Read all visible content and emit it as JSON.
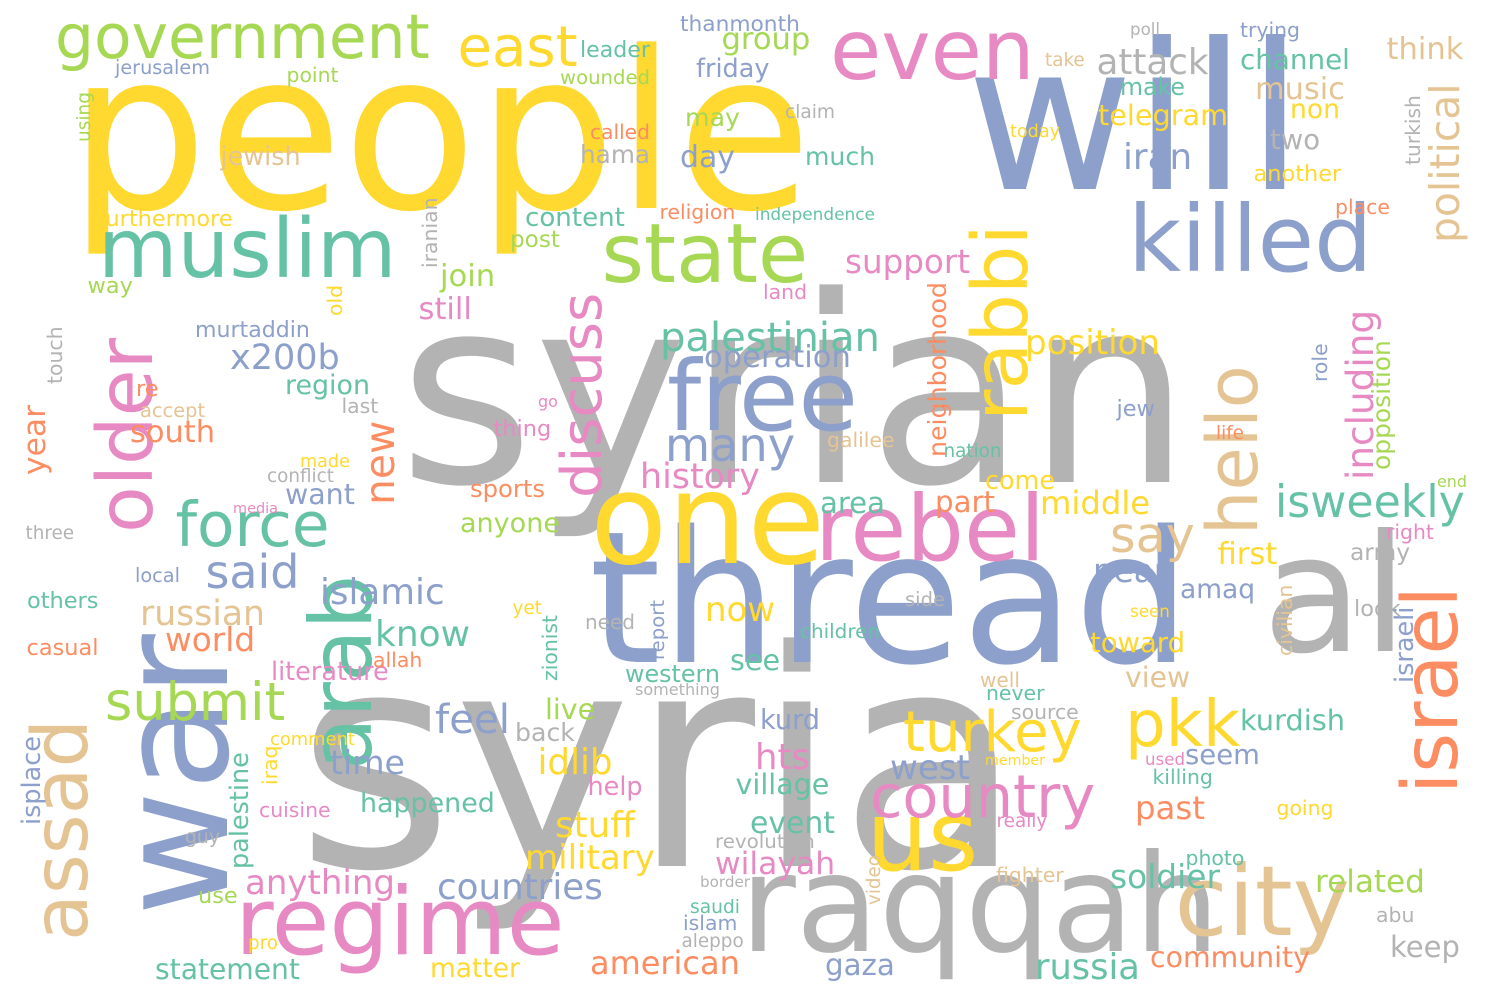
{
  "palette": {
    "gray": "#b3b3b3",
    "blue": "#8da0cb",
    "yellow": "#ffd92f",
    "green": "#a6d854",
    "pink": "#e78ac3",
    "teal": "#66c2a5",
    "orange": "#fc8d62",
    "tan": "#e5c494"
  },
  "words": [
    {
      "text": "syrian",
      "color": "gray"
    },
    {
      "text": "syria",
      "color": "gray"
    },
    {
      "text": "people",
      "color": "yellow"
    },
    {
      "text": "will",
      "color": "blue"
    },
    {
      "text": "thread",
      "color": "blue"
    },
    {
      "text": "al",
      "color": "gray"
    },
    {
      "text": "war",
      "color": "blue"
    },
    {
      "text": "raqqah",
      "color": "gray"
    },
    {
      "text": "one",
      "color": "yellow"
    },
    {
      "text": "free",
      "color": "blue"
    },
    {
      "text": "state",
      "color": "green"
    },
    {
      "text": "muslim",
      "color": "teal"
    },
    {
      "text": "killed",
      "color": "blue"
    },
    {
      "text": "regime",
      "color": "pink"
    },
    {
      "text": "rebel",
      "color": "pink"
    },
    {
      "text": "arab",
      "color": "teal"
    },
    {
      "text": "city",
      "color": "tan"
    },
    {
      "text": "even",
      "color": "pink"
    },
    {
      "text": "government",
      "color": "green"
    },
    {
      "text": "older",
      "color": "pink"
    },
    {
      "text": "assad",
      "color": "tan"
    },
    {
      "text": "israel",
      "color": "orange"
    },
    {
      "text": "hello",
      "color": "tan"
    },
    {
      "text": "us",
      "color": "yellow"
    },
    {
      "text": "rabbi",
      "color": "yellow"
    },
    {
      "text": "force",
      "color": "teal"
    },
    {
      "text": "pkk",
      "color": "yellow"
    },
    {
      "text": "country",
      "color": "pink"
    },
    {
      "text": "east",
      "color": "yellow"
    },
    {
      "text": "turkey",
      "color": "yellow"
    },
    {
      "text": "discuss",
      "color": "pink"
    },
    {
      "text": "many",
      "color": "blue"
    },
    {
      "text": "said",
      "color": "blue"
    },
    {
      "text": "submit",
      "color": "green"
    },
    {
      "text": "say",
      "color": "tan"
    },
    {
      "text": "isweekly",
      "color": "teal"
    },
    {
      "text": "palestinian",
      "color": "teal"
    },
    {
      "text": "new",
      "color": "orange"
    },
    {
      "text": "political",
      "color": "tan"
    },
    {
      "text": "x200b",
      "color": "blue"
    },
    {
      "text": "attack",
      "color": "gray"
    },
    {
      "text": "know",
      "color": "teal"
    },
    {
      "text": "islamic",
      "color": "blue"
    },
    {
      "text": "now",
      "color": "yellow"
    },
    {
      "text": "feel",
      "color": "blue"
    },
    {
      "text": "support",
      "color": "pink"
    },
    {
      "text": "operation",
      "color": "blue"
    },
    {
      "text": "position",
      "color": "yellow"
    },
    {
      "text": "group",
      "color": "green"
    },
    {
      "text": "channel",
      "color": "teal"
    },
    {
      "text": "music",
      "color": "tan"
    },
    {
      "text": "think",
      "color": "tan"
    },
    {
      "text": "iran",
      "color": "blue"
    },
    {
      "text": "day",
      "color": "blue"
    },
    {
      "text": "much",
      "color": "teal"
    },
    {
      "text": "may",
      "color": "green"
    },
    {
      "text": "hama",
      "color": "gray"
    },
    {
      "text": "non",
      "color": "yellow"
    },
    {
      "text": "two",
      "color": "gray"
    },
    {
      "text": "make",
      "color": "teal"
    },
    {
      "text": "telegram",
      "color": "yellow"
    },
    {
      "text": "including",
      "color": "pink"
    },
    {
      "text": "history",
      "color": "pink"
    },
    {
      "text": "russian",
      "color": "tan"
    },
    {
      "text": "world",
      "color": "orange"
    },
    {
      "text": "countries",
      "color": "blue"
    },
    {
      "text": "anything",
      "color": "pink"
    },
    {
      "text": "happened",
      "color": "teal"
    },
    {
      "text": "military",
      "color": "yellow"
    },
    {
      "text": "stuff",
      "color": "yellow"
    },
    {
      "text": "time",
      "color": "blue"
    },
    {
      "text": "idlib",
      "color": "yellow"
    },
    {
      "text": "hts",
      "color": "pink"
    },
    {
      "text": "west",
      "color": "blue"
    },
    {
      "text": "kurdish",
      "color": "teal"
    },
    {
      "text": "seem",
      "color": "blue"
    },
    {
      "text": "past",
      "color": "orange"
    },
    {
      "text": "event",
      "color": "teal"
    },
    {
      "text": "wilayah",
      "color": "pink"
    },
    {
      "text": "soldier",
      "color": "teal"
    },
    {
      "text": "related",
      "color": "green"
    },
    {
      "text": "community",
      "color": "orange"
    },
    {
      "text": "russia",
      "color": "teal"
    },
    {
      "text": "keep",
      "color": "gray"
    },
    {
      "text": "american",
      "color": "orange"
    },
    {
      "text": "gaza",
      "color": "blue"
    },
    {
      "text": "statement",
      "color": "teal"
    },
    {
      "text": "matter",
      "color": "yellow"
    },
    {
      "text": "come",
      "color": "yellow"
    },
    {
      "text": "middle",
      "color": "yellow"
    },
    {
      "text": "area",
      "color": "teal"
    },
    {
      "text": "part",
      "color": "orange"
    },
    {
      "text": "near",
      "color": "blue"
    },
    {
      "text": "first",
      "color": "yellow"
    },
    {
      "text": "army",
      "color": "gray"
    },
    {
      "text": "amaq",
      "color": "blue"
    },
    {
      "text": "toward",
      "color": "yellow"
    },
    {
      "text": "view",
      "color": "tan"
    },
    {
      "text": "see",
      "color": "teal"
    },
    {
      "text": "western",
      "color": "teal"
    },
    {
      "text": "live",
      "color": "green"
    },
    {
      "text": "back",
      "color": "gray"
    },
    {
      "text": "kurd",
      "color": "blue"
    },
    {
      "text": "village",
      "color": "teal"
    },
    {
      "text": "want",
      "color": "blue"
    },
    {
      "text": "anyone",
      "color": "green"
    },
    {
      "text": "south",
      "color": "orange"
    },
    {
      "text": "region",
      "color": "teal"
    },
    {
      "text": "join",
      "color": "green"
    },
    {
      "text": "still",
      "color": "pink"
    },
    {
      "text": "content",
      "color": "teal"
    },
    {
      "text": "post",
      "color": "green"
    },
    {
      "text": "year",
      "color": "orange"
    },
    {
      "text": "sports",
      "color": "orange"
    },
    {
      "text": "literature",
      "color": "pink"
    },
    {
      "text": "help",
      "color": "pink"
    },
    {
      "text": "leader",
      "color": "teal"
    },
    {
      "text": "thanmonth",
      "color": "blue"
    },
    {
      "text": "wounded",
      "color": "green"
    },
    {
      "text": "friday",
      "color": "blue"
    },
    {
      "text": "jewish",
      "color": "tan"
    },
    {
      "text": "jerusalem",
      "color": "blue"
    },
    {
      "text": "point",
      "color": "green"
    },
    {
      "text": "using",
      "color": "green"
    },
    {
      "text": "furthermore",
      "color": "yellow"
    },
    {
      "text": "religion",
      "color": "orange"
    },
    {
      "text": "independence",
      "color": "teal"
    },
    {
      "text": "called",
      "color": "orange"
    },
    {
      "text": "claim",
      "color": "gray"
    },
    {
      "text": "today",
      "color": "yellow"
    },
    {
      "text": "poll",
      "color": "gray"
    },
    {
      "text": "trying",
      "color": "blue"
    },
    {
      "text": "take",
      "color": "tan"
    },
    {
      "text": "another",
      "color": "yellow"
    },
    {
      "text": "turkish",
      "color": "gray"
    },
    {
      "text": "place",
      "color": "orange"
    },
    {
      "text": "iranian",
      "color": "gray"
    },
    {
      "text": "way",
      "color": "green"
    },
    {
      "text": "land",
      "color": "pink"
    },
    {
      "text": "murtaddin",
      "color": "blue"
    },
    {
      "text": "old",
      "color": "yellow"
    },
    {
      "text": "touch",
      "color": "gray"
    },
    {
      "text": "re",
      "color": "orange"
    },
    {
      "text": "accept",
      "color": "tan"
    },
    {
      "text": "last",
      "color": "gray"
    },
    {
      "text": "go",
      "color": "pink"
    },
    {
      "text": "thing",
      "color": "pink"
    },
    {
      "text": "galilee",
      "color": "tan"
    },
    {
      "text": "nation",
      "color": "teal"
    },
    {
      "text": "neighborhood",
      "color": "orange"
    },
    {
      "text": "jew",
      "color": "blue"
    },
    {
      "text": "role",
      "color": "blue"
    },
    {
      "text": "opposition",
      "color": "green"
    },
    {
      "text": "life",
      "color": "orange"
    },
    {
      "text": "end",
      "color": "green"
    },
    {
      "text": "right",
      "color": "pink"
    },
    {
      "text": "conflict",
      "color": "gray"
    },
    {
      "text": "made",
      "color": "yellow"
    },
    {
      "text": "media",
      "color": "pink"
    },
    {
      "text": "three",
      "color": "gray"
    },
    {
      "text": "local",
      "color": "blue"
    },
    {
      "text": "others",
      "color": "teal"
    },
    {
      "text": "casual",
      "color": "orange"
    },
    {
      "text": "yet",
      "color": "yellow"
    },
    {
      "text": "need",
      "color": "gray"
    },
    {
      "text": "report",
      "color": "blue"
    },
    {
      "text": "zionist",
      "color": "teal"
    },
    {
      "text": "side",
      "color": "gray"
    },
    {
      "text": "children",
      "color": "teal"
    },
    {
      "text": "seen",
      "color": "yellow"
    },
    {
      "text": "look",
      "color": "gray"
    },
    {
      "text": "civilian",
      "color": "tan"
    },
    {
      "text": "israeli",
      "color": "blue"
    },
    {
      "text": "allah",
      "color": "orange"
    },
    {
      "text": "something",
      "color": "gray"
    },
    {
      "text": "well",
      "color": "tan"
    },
    {
      "text": "never",
      "color": "teal"
    },
    {
      "text": "source",
      "color": "gray"
    },
    {
      "text": "isplace",
      "color": "blue"
    },
    {
      "text": "comment",
      "color": "yellow"
    },
    {
      "text": "iraq",
      "color": "yellow"
    },
    {
      "text": "palestine",
      "color": "teal"
    },
    {
      "text": "cuisine",
      "color": "pink"
    },
    {
      "text": "guy",
      "color": "gray"
    },
    {
      "text": "use",
      "color": "green"
    },
    {
      "text": "pro",
      "color": "yellow"
    },
    {
      "text": "member",
      "color": "yellow"
    },
    {
      "text": "used",
      "color": "pink"
    },
    {
      "text": "killing",
      "color": "teal"
    },
    {
      "text": "really",
      "color": "pink"
    },
    {
      "text": "going",
      "color": "yellow"
    },
    {
      "text": "revolution",
      "color": "gray"
    },
    {
      "text": "border",
      "color": "gray"
    },
    {
      "text": "photo",
      "color": "teal"
    },
    {
      "text": "fighter",
      "color": "tan"
    },
    {
      "text": "video",
      "color": "tan"
    },
    {
      "text": "saudi",
      "color": "teal"
    },
    {
      "text": "islam",
      "color": "blue"
    },
    {
      "text": "aleppo",
      "color": "gray"
    },
    {
      "text": "abu",
      "color": "gray"
    }
  ]
}
